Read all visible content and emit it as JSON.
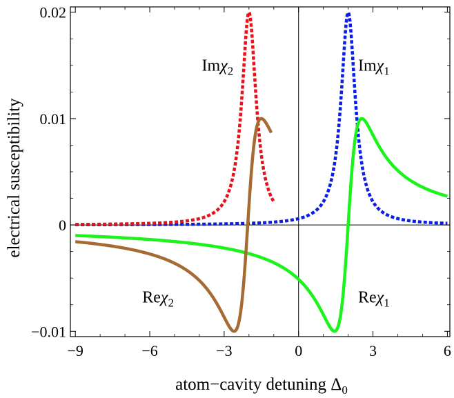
{
  "chart_data": {
    "type": "line",
    "xlabel": "atom−cavity detuning Δ",
    "xlabel_sub": "0",
    "ylabel": "electrical susceptibility",
    "xlim": [
      -9.2,
      6.1
    ],
    "ylim": [
      -0.0105,
      0.0205
    ],
    "x_ticks": [
      -9,
      -6,
      -3,
      0,
      3,
      6
    ],
    "x_tick_labels": [
      "−9",
      "−6",
      "−3",
      "0",
      "3",
      "6"
    ],
    "y_ticks": [
      -0.01,
      0,
      0.01,
      0.02
    ],
    "y_tick_labels": [
      "−0.01",
      "0",
      "0.01",
      "0.02"
    ],
    "grid": false,
    "zero_lines": true,
    "series": [
      {
        "name": "Imχ",
        "name_sub": "1",
        "label_pos": [
          2.4,
          0.0145
        ],
        "color": "#0a1ee6",
        "style": "dashed",
        "model": "im",
        "params": {
          "c": 2.0,
          "gamma": 0.35,
          "amp": 0.02
        },
        "x_range": [
          -9,
          6
        ]
      },
      {
        "name": "Imχ",
        "name_sub": "2",
        "label_pos": [
          -3.9,
          0.0145
        ],
        "color": "#e8111a",
        "style": "dashed",
        "model": "im",
        "params": {
          "c": -2.0,
          "gamma": 0.35,
          "amp": 0.02
        },
        "x_range": [
          -9,
          -1.0
        ]
      },
      {
        "name": "Reχ",
        "name_sub": "1",
        "label_pos": [
          2.4,
          -0.0073
        ],
        "color": "#1cf21c",
        "style": "solid",
        "model": "re",
        "params": {
          "c": 2.0,
          "gamma": 0.55,
          "amp": 0.01
        },
        "x_range": [
          -9,
          6
        ]
      },
      {
        "name": "Reχ",
        "name_sub": "2",
        "label_pos": [
          -6.3,
          -0.0073
        ],
        "color": "#a66a33",
        "style": "solid",
        "model": "re",
        "params": {
          "c": -2.05,
          "gamma": 0.55,
          "amp": 0.01
        },
        "x_range": [
          -9,
          -1.1
        ]
      }
    ]
  }
}
